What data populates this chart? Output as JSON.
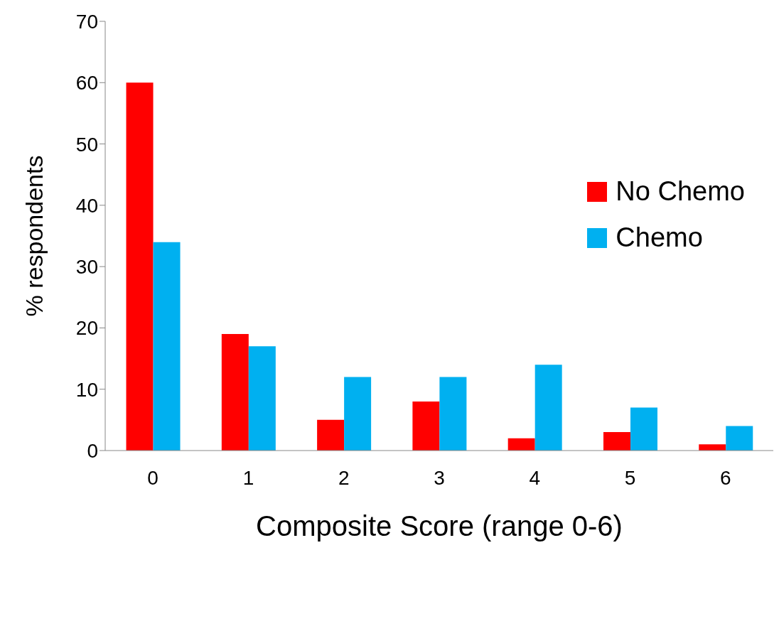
{
  "chart_data": {
    "type": "bar",
    "xlabel": "Composite Score (range 0-6)",
    "ylabel": "% respondents",
    "categories": [
      "0",
      "1",
      "2",
      "3",
      "4",
      "5",
      "6"
    ],
    "series": [
      {
        "name": "No Chemo",
        "color": "#ff0000",
        "values": [
          60,
          19,
          5,
          8,
          2,
          3,
          1
        ]
      },
      {
        "name": "Chemo",
        "color": "#00b0f0",
        "values": [
          34,
          17,
          12,
          12,
          14,
          7,
          4
        ]
      }
    ],
    "ylim": [
      0,
      70
    ],
    "yticks": [
      0,
      10,
      20,
      30,
      40,
      50,
      60,
      70
    ],
    "grid": false,
    "legend": "top right"
  }
}
